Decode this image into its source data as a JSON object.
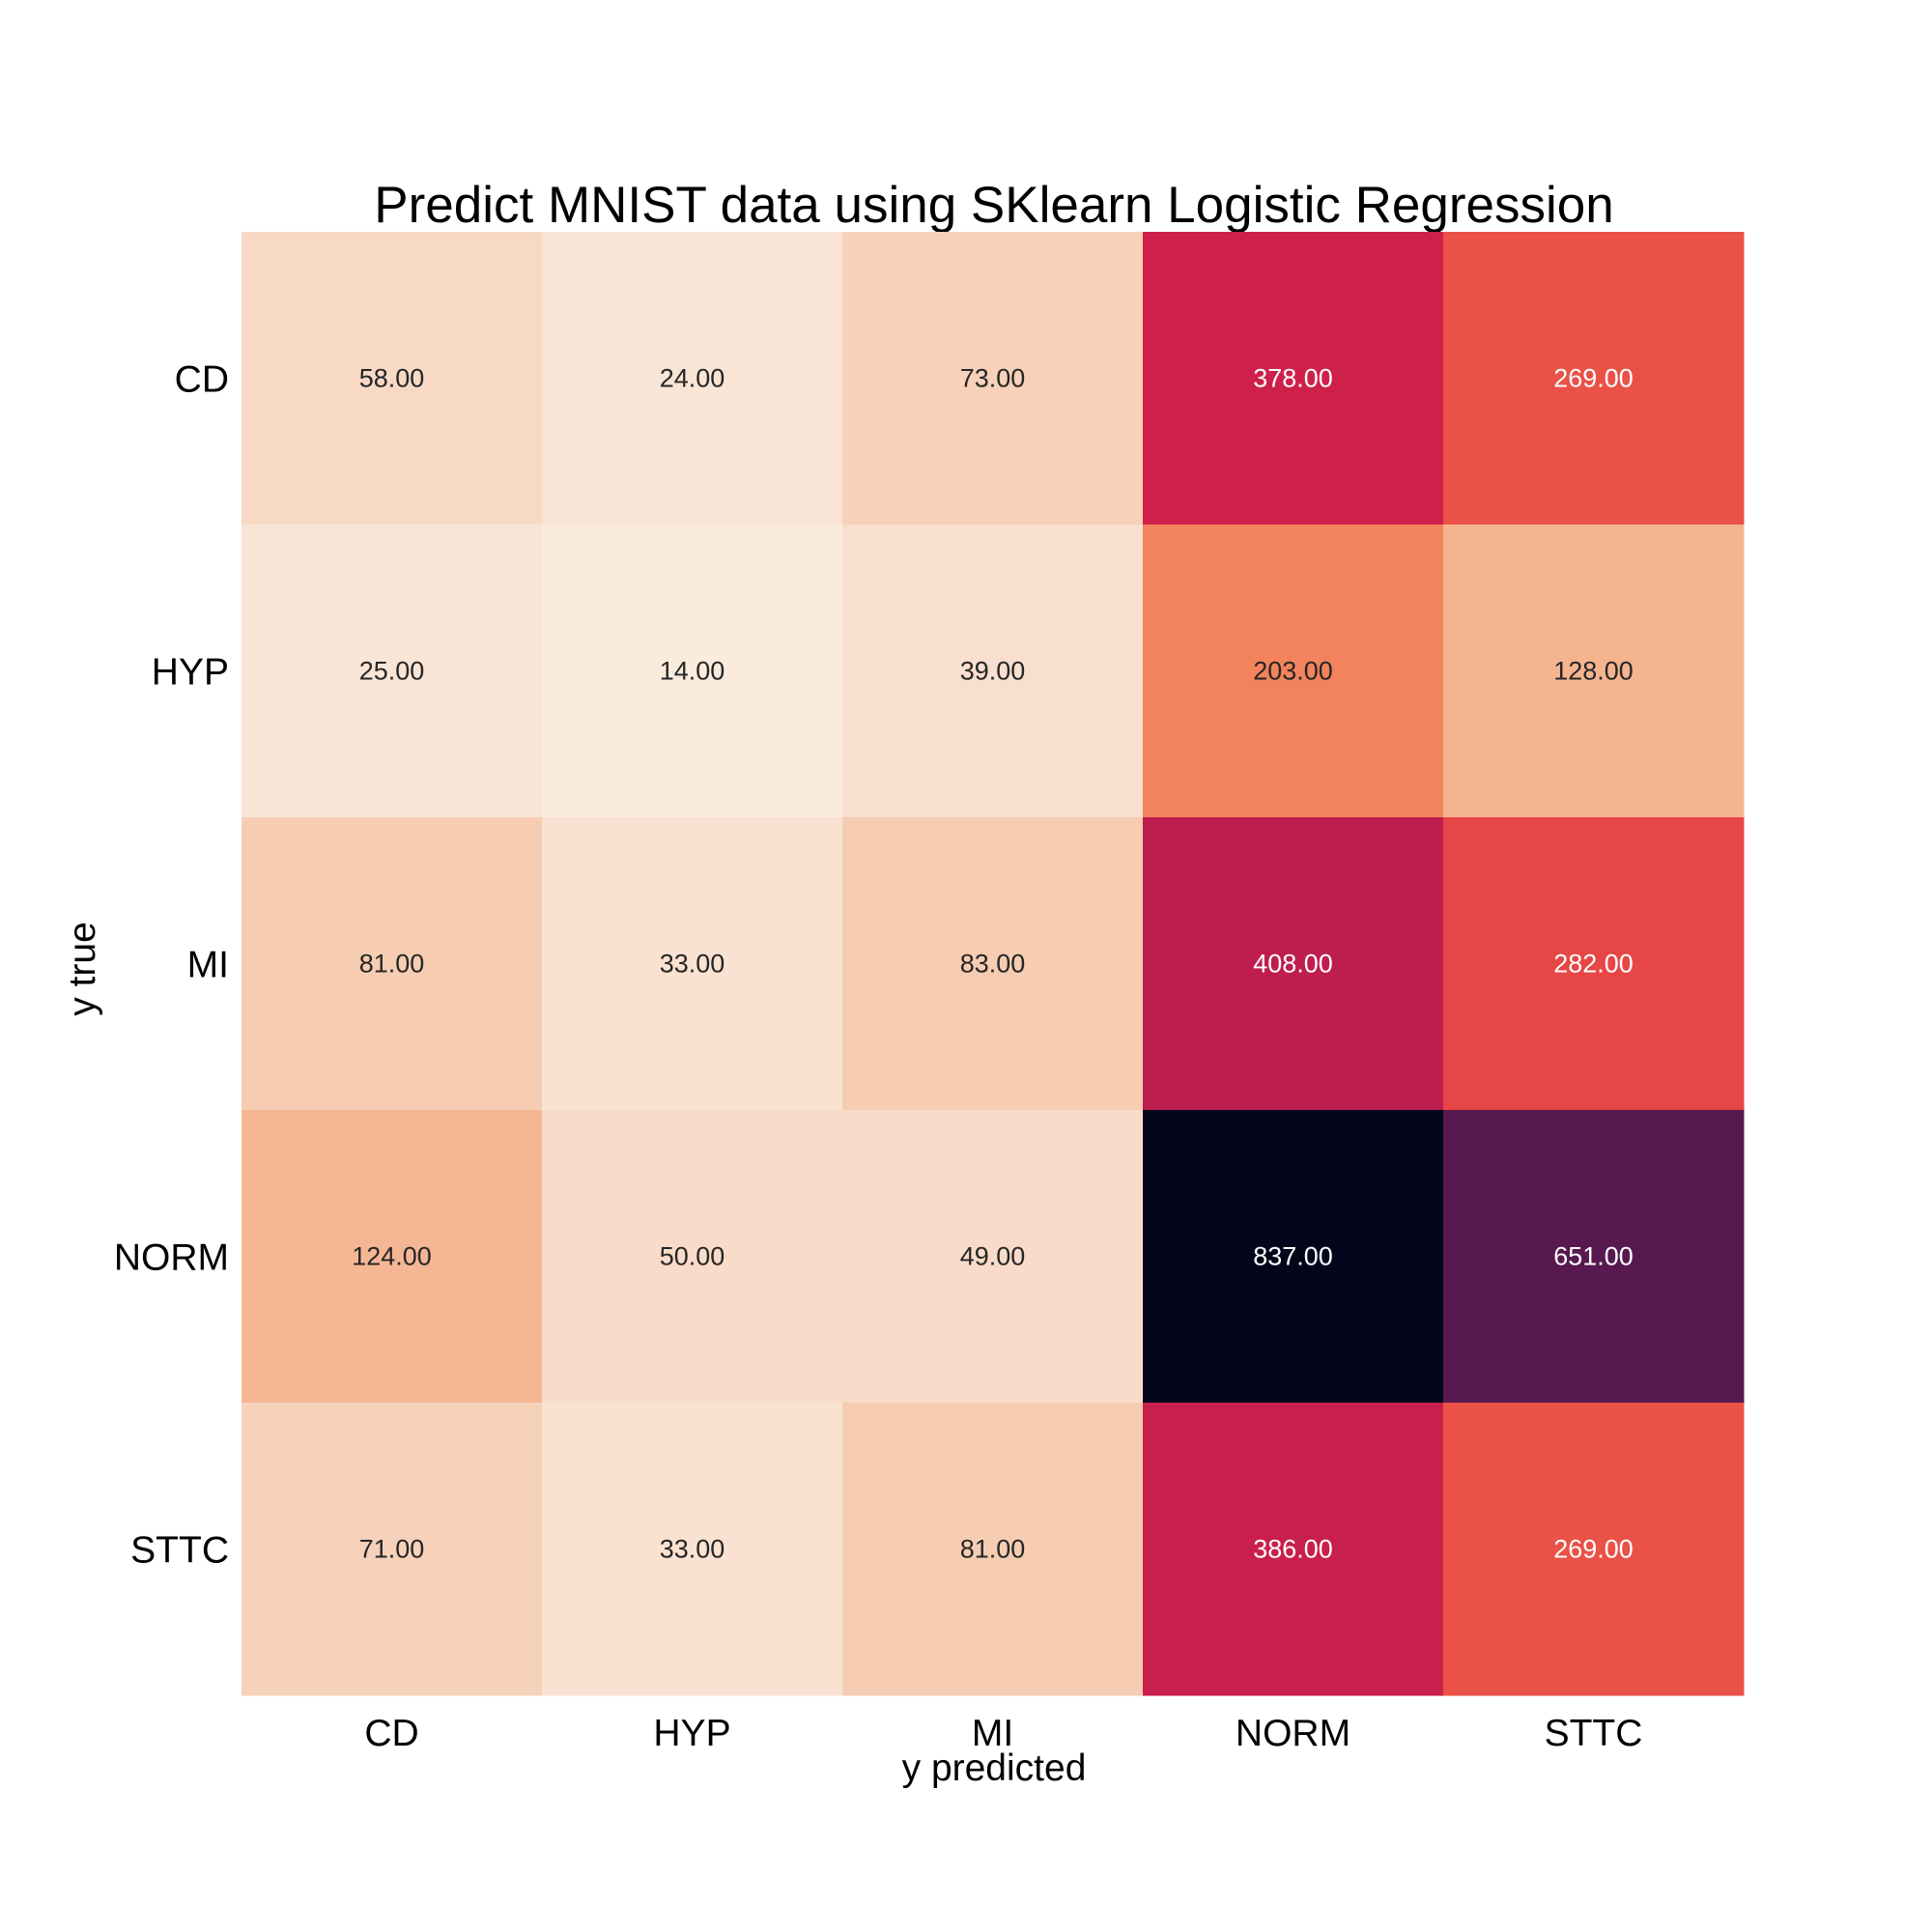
{
  "chart_data": {
    "type": "heatmap",
    "title": "Predict MNIST data using SKlearn Logistic Regression",
    "xlabel": "y predicted",
    "ylabel": "y true",
    "x_categories": [
      "CD",
      "HYP",
      "MI",
      "NORM",
      "STTC"
    ],
    "y_categories": [
      "CD",
      "HYP",
      "MI",
      "NORM",
      "STTC"
    ],
    "values": [
      [
        58,
        24,
        73,
        378,
        269
      ],
      [
        25,
        14,
        39,
        203,
        128
      ],
      [
        81,
        33,
        83,
        408,
        282
      ],
      [
        124,
        50,
        49,
        837,
        651
      ],
      [
        71,
        33,
        81,
        386,
        269
      ]
    ],
    "value_labels": [
      [
        "58.00",
        "24.00",
        "73.00",
        "378.00",
        "269.00"
      ],
      [
        "25.00",
        "14.00",
        "39.00",
        "203.00",
        "128.00"
      ],
      [
        "81.00",
        "33.00",
        "83.00",
        "408.00",
        "282.00"
      ],
      [
        "124.00",
        "50.00",
        "49.00",
        "837.00",
        "651.00"
      ],
      [
        "71.00",
        "33.00",
        "81.00",
        "386.00",
        "269.00"
      ]
    ],
    "colormap": "rocket_r",
    "value_range": [
      14,
      837
    ],
    "colorbar": false
  }
}
